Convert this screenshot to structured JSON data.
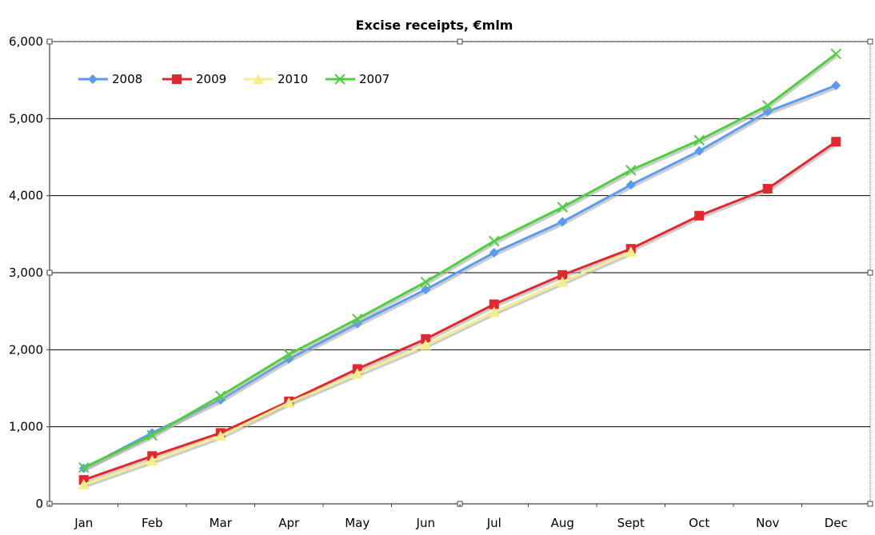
{
  "chart_data": {
    "type": "line",
    "title": "Excise receipts, €mlm",
    "xlabel": "",
    "ylabel": "",
    "categories": [
      "Jan",
      "Feb",
      "Mar",
      "Apr",
      "May",
      "Jun",
      "Jul",
      "Aug",
      "Sept",
      "Oct",
      "Nov",
      "Dec"
    ],
    "ylim": [
      0,
      6000
    ],
    "yticks": [
      0,
      1000,
      2000,
      3000,
      4000,
      5000,
      6000
    ],
    "ytick_labels": [
      "0",
      "1,000",
      "2,000",
      "3,000",
      "4,000",
      "5,000",
      "6,000"
    ],
    "grid": true,
    "legend_position": "top-left",
    "series": [
      {
        "name": "2008",
        "color": "#5b9bef",
        "marker": "diamond",
        "values": [
          460,
          920,
          1350,
          1880,
          2340,
          2780,
          3260,
          3660,
          4140,
          4580,
          5090,
          5430
        ]
      },
      {
        "name": "2009",
        "color": "#e0282e",
        "marker": "square",
        "values": [
          310,
          620,
          920,
          1330,
          1750,
          2140,
          2590,
          2970,
          3310,
          3740,
          4090,
          4700
        ]
      },
      {
        "name": "2010",
        "color": "#f5ee8c",
        "marker": "triangle",
        "values": [
          250,
          560,
          880,
          1310,
          1690,
          2060,
          2490,
          2880,
          3270,
          null,
          null,
          null
        ]
      },
      {
        "name": "2007",
        "color": "#4fcf3f",
        "marker": "x",
        "values": [
          470,
          890,
          1400,
          1940,
          2400,
          2880,
          3410,
          3850,
          4330,
          4720,
          5170,
          5840
        ]
      }
    ]
  }
}
